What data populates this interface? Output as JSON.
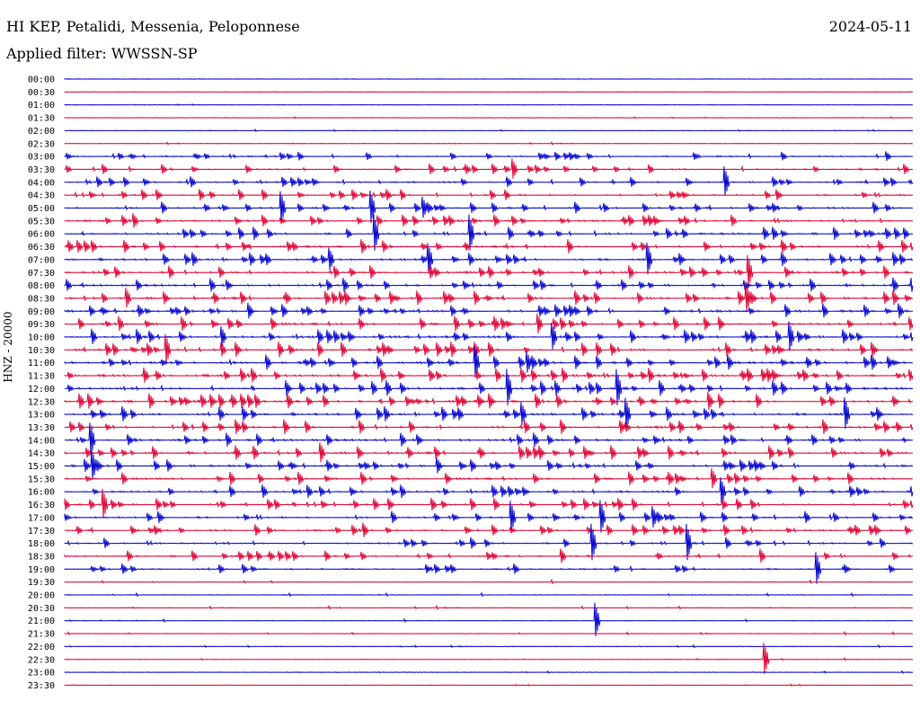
{
  "header": {
    "station": "HI KEP, Petalidi, Messenia, Peloponnese",
    "date": "2024-05-11",
    "filter": "Applied filter: WWSSN-SP"
  },
  "chart_data": {
    "type": "line",
    "title": "HI KEP, Petalidi, Messenia, Peloponnese",
    "ylabel": "HNZ - 20000",
    "x": [
      "00:00",
      "00:30",
      "01:00",
      "01:30",
      "02:00",
      "02:30",
      "03:00",
      "03:30",
      "04:00",
      "04:30",
      "05:00",
      "05:30",
      "06:00",
      "06:30",
      "07:00",
      "07:30",
      "08:00",
      "08:30",
      "09:00",
      "09:30",
      "10:00",
      "10:30",
      "11:00",
      "11:30",
      "12:00",
      "12:30",
      "13:00",
      "13:30",
      "14:00",
      "14:30",
      "15:00",
      "15:30",
      "16:00",
      "16:30",
      "17:00",
      "17:30",
      "18:00",
      "18:30",
      "19:00",
      "19:30",
      "20:00",
      "20:30",
      "21:00",
      "21:30",
      "22:00",
      "22:30",
      "23:00",
      "23:30"
    ],
    "row_colors": [
      "#0000cc",
      "#dd0033"
    ],
    "grid": false
  }
}
